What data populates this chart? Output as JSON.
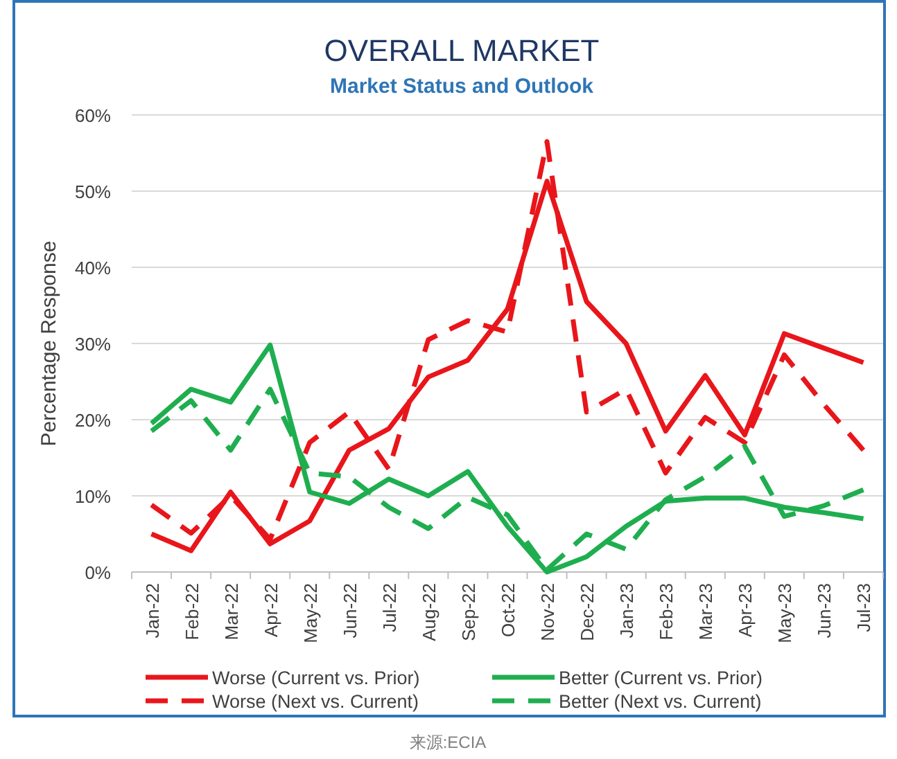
{
  "chart_data": {
    "type": "line",
    "title": "OVERALL MARKET",
    "subtitle": "Market Status and Outlook",
    "ylabel": "Percentage Response",
    "categories": [
      "Jan-22",
      "Feb-22",
      "Mar-22",
      "Apr-22",
      "May-22",
      "Jun-22",
      "Jul-22",
      "Aug-22",
      "Sep-22",
      "Oct-22",
      "Nov-22",
      "Dec-22",
      "Jan-23",
      "Feb-23",
      "Mar-23",
      "Apr-23",
      "May-23",
      "Jun-23",
      "Jul-23"
    ],
    "series": [
      {
        "name": "Worse (Current vs. Prior)",
        "color": "#e8161b",
        "line_style": "solid",
        "values": [
          5,
          2.8,
          10.5,
          3.7,
          6.7,
          16,
          18.8,
          25.6,
          27.8,
          34.5,
          51.3,
          35.5,
          30,
          18.5,
          25.8,
          18,
          31.3,
          29.4,
          27.5
        ]
      },
      {
        "name": "Better (Current vs. Prior)",
        "color": "#1fae4f",
        "line_style": "solid",
        "values": [
          19.5,
          24,
          22.3,
          29.8,
          10.5,
          9,
          12.2,
          10,
          13.2,
          6,
          0,
          2,
          6,
          9.3,
          9.7,
          9.7,
          8.5,
          7.8,
          7
        ]
      },
      {
        "name": "Worse (Next vs. Current)",
        "color": "#e8161b",
        "line_style": "dashed",
        "values": [
          8.8,
          5.1,
          10,
          4.3,
          17,
          21,
          13.5,
          30.5,
          33,
          31.5,
          56.5,
          21,
          24,
          13,
          20.3,
          17,
          28.5,
          22,
          16
        ]
      },
      {
        "name": "Better (Next vs. Current)",
        "color": "#1fae4f",
        "line_style": "dashed",
        "values": [
          18.5,
          22.5,
          16,
          24,
          13,
          12.5,
          8.5,
          5.7,
          9.8,
          7.5,
          0.3,
          5,
          3,
          9.5,
          12.5,
          16.5,
          7.3,
          8.7,
          10.8
        ]
      }
    ],
    "ylim": [
      0,
      60
    ],
    "yticks": [
      {
        "value": 0,
        "label": "0%"
      },
      {
        "value": 10,
        "label": "10%"
      },
      {
        "value": 20,
        "label": "20%"
      },
      {
        "value": 30,
        "label": "30%"
      },
      {
        "value": 40,
        "label": "40%"
      },
      {
        "value": 50,
        "label": "50%"
      },
      {
        "value": 60,
        "label": "60%"
      }
    ],
    "grid": "y",
    "legend": "bottom",
    "marker": "none",
    "annotations": [
      "来源:ECIA"
    ]
  }
}
